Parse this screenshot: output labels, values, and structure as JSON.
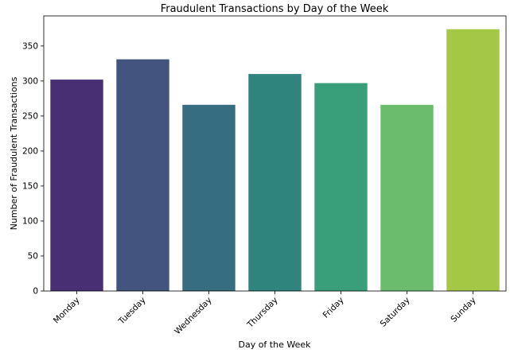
{
  "chart_data": {
    "type": "bar",
    "title": "Fraudulent Transactions by Day of the Week",
    "xlabel": "Day of the Week",
    "ylabel": "Number of Fraudulent Transactions",
    "categories": [
      "Monday",
      "Tuesday",
      "Wednesday",
      "Thursday",
      "Friday",
      "Saturday",
      "Sunday"
    ],
    "values": [
      302,
      331,
      266,
      310,
      297,
      266,
      374
    ],
    "colors": [
      "#482f73",
      "#43547e",
      "#376d80",
      "#2f847d",
      "#389f7a",
      "#6bbd6d",
      "#a4c746"
    ],
    "ylim": [
      0,
      393
    ],
    "yticks": [
      0,
      50,
      100,
      150,
      200,
      250,
      300,
      350
    ],
    "grid": false,
    "legend": "none"
  }
}
